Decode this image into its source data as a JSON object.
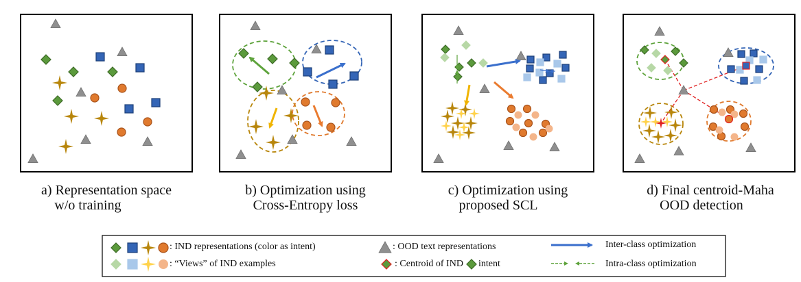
{
  "panels": [
    {
      "id": "a",
      "caption_line1": "a) Representation space",
      "caption_line2": "w/o training"
    },
    {
      "id": "b",
      "caption_line1": "b) Optimization using",
      "caption_line2": "Cross-Entropy loss"
    },
    {
      "id": "c",
      "caption_line1": "c) Optimization using",
      "caption_line2": "proposed SCL"
    },
    {
      "id": "d",
      "caption_line1": "d) Final centroid-Maha",
      "caption_line2": "OOD detection"
    }
  ],
  "legend": {
    "ind_representations": ": IND representations (color as intent)",
    "views": ": “Views” of IND examples",
    "ood": ": OOD text representations",
    "centroid_prefix": ": Centroid of  IND",
    "centroid_suffix": "intent",
    "inter_class": "Inter-class optimization",
    "intra_class": "Intra-class optimization"
  },
  "colors": {
    "green": "#5b9a3c",
    "green_stroke": "#3d6b27",
    "blue": "#3465b6",
    "blue_stroke": "#1d3f78",
    "gold": "#b8860b",
    "orange": "#e07a2e",
    "orange_stroke": "#a8521a",
    "light_green": "#b7d8a6",
    "light_blue": "#a9c8ea",
    "light_gold": "#ffd24a",
    "light_orange": "#f4b58a",
    "gray": "#8f8f8f",
    "centroid_red": "#e02020",
    "inter_arrow": "#3a6fcc",
    "intra_arrow": "#5ea33c",
    "arrow_gold": "#f0b400",
    "arrow_orange": "#ea7b2f"
  }
}
